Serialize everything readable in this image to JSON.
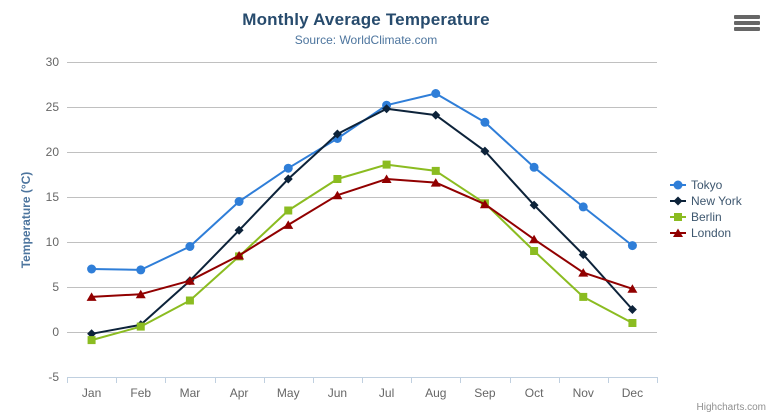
{
  "credit": "Highcharts.com",
  "colors": {
    "grid": "#c0c0c0",
    "axis_line": "#c0d0e0",
    "tick_label": "#666666",
    "title": "#274b6d",
    "subtitle": "#4d759e",
    "axis_title": "#4d759e",
    "legend_text": "#3e576f",
    "credit": "#909090",
    "menu_icon": "#666666"
  },
  "chart_data": {
    "type": "line",
    "title": "Monthly Average Temperature",
    "subtitle": "Source: WorldClimate.com",
    "xlabel": "",
    "ylabel": "Temperature (°C)",
    "ylim": [
      -5,
      30
    ],
    "ytick_interval": 5,
    "grid": true,
    "legend_position": "right",
    "categories": [
      "Jan",
      "Feb",
      "Mar",
      "Apr",
      "May",
      "Jun",
      "Jul",
      "Aug",
      "Sep",
      "Oct",
      "Nov",
      "Dec"
    ],
    "series": [
      {
        "name": "Tokyo",
        "color": "#2f7ed8",
        "marker": "circle",
        "values": [
          7.0,
          6.9,
          9.5,
          14.5,
          18.2,
          21.5,
          25.2,
          26.5,
          23.3,
          18.3,
          13.9,
          9.6
        ]
      },
      {
        "name": "New York",
        "color": "#0d233a",
        "marker": "diamond",
        "values": [
          -0.2,
          0.8,
          5.7,
          11.3,
          17.0,
          22.0,
          24.8,
          24.1,
          20.1,
          14.1,
          8.6,
          2.5
        ]
      },
      {
        "name": "Berlin",
        "color": "#8bbc21",
        "marker": "square",
        "values": [
          -0.9,
          0.6,
          3.5,
          8.4,
          13.5,
          17.0,
          18.6,
          17.9,
          14.3,
          9.0,
          3.9,
          1.0
        ]
      },
      {
        "name": "London",
        "color": "#910000",
        "marker": "triangle",
        "values": [
          3.9,
          4.2,
          5.7,
          8.5,
          11.9,
          15.2,
          17.0,
          16.6,
          14.2,
          10.3,
          6.6,
          4.8
        ]
      }
    ]
  }
}
